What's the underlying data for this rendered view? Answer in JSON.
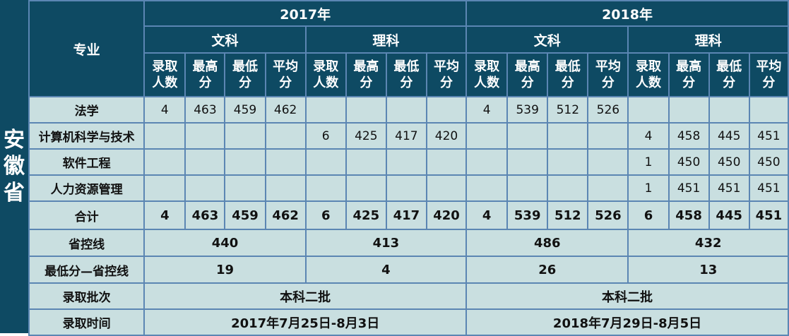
{
  "province": "安徽省",
  "header": {
    "major_label": "专业",
    "years": [
      "2017年",
      "2018年"
    ],
    "tracks": [
      "文科",
      "理科",
      "文科",
      "理科"
    ],
    "metrics": [
      [
        "录取",
        "人数"
      ],
      [
        "最高",
        "分"
      ],
      [
        "最低",
        "分"
      ],
      [
        "平均",
        "分"
      ],
      [
        "录取",
        "人数"
      ],
      [
        "最高",
        "分"
      ],
      [
        "最低",
        "分"
      ],
      [
        "平均",
        "分"
      ],
      [
        "录取",
        "人数"
      ],
      [
        "最高",
        "分"
      ],
      [
        "最低",
        "分"
      ],
      [
        "平均",
        "分"
      ],
      [
        "录取",
        "人数"
      ],
      [
        "最高",
        "分"
      ],
      [
        "最低",
        "分"
      ],
      [
        "平均",
        "分"
      ]
    ]
  },
  "rows": [
    {
      "major": "法学",
      "cells": [
        "4",
        "463",
        "459",
        "462",
        "",
        "",
        "",
        "",
        "4",
        "539",
        "512",
        "526",
        "",
        "",
        "",
        ""
      ]
    },
    {
      "major": "计算机科学与技术",
      "cells": [
        "",
        "",
        "",
        "",
        "6",
        "425",
        "417",
        "420",
        "",
        "",
        "",
        "",
        "4",
        "458",
        "445",
        "451"
      ]
    },
    {
      "major": "软件工程",
      "cells": [
        "",
        "",
        "",
        "",
        "",
        "",
        "",
        "",
        "",
        "",
        "",
        "",
        "1",
        "450",
        "450",
        "450"
      ]
    },
    {
      "major": "人力资源管理",
      "cells": [
        "",
        "",
        "",
        "",
        "",
        "",
        "",
        "",
        "",
        "",
        "",
        "",
        "1",
        "451",
        "451",
        "451"
      ]
    }
  ],
  "total": {
    "label": "合计",
    "cells": [
      "4",
      "463",
      "459",
      "462",
      "6",
      "425",
      "417",
      "420",
      "4",
      "539",
      "512",
      "526",
      "6",
      "458",
      "445",
      "451"
    ]
  },
  "control_line": {
    "label": "省控线",
    "values": [
      "440",
      "413",
      "486",
      "432"
    ]
  },
  "diff_line": {
    "label": "最低分—省控线",
    "values": [
      "19",
      "4",
      "26",
      "13"
    ]
  },
  "batch": {
    "label": "录取批次",
    "values": [
      "本科二批",
      "本科二批"
    ]
  },
  "time": {
    "label": "录取时间",
    "values": [
      "2017年7月25日-8月3日",
      "2018年7月29日-8月5日"
    ]
  }
}
